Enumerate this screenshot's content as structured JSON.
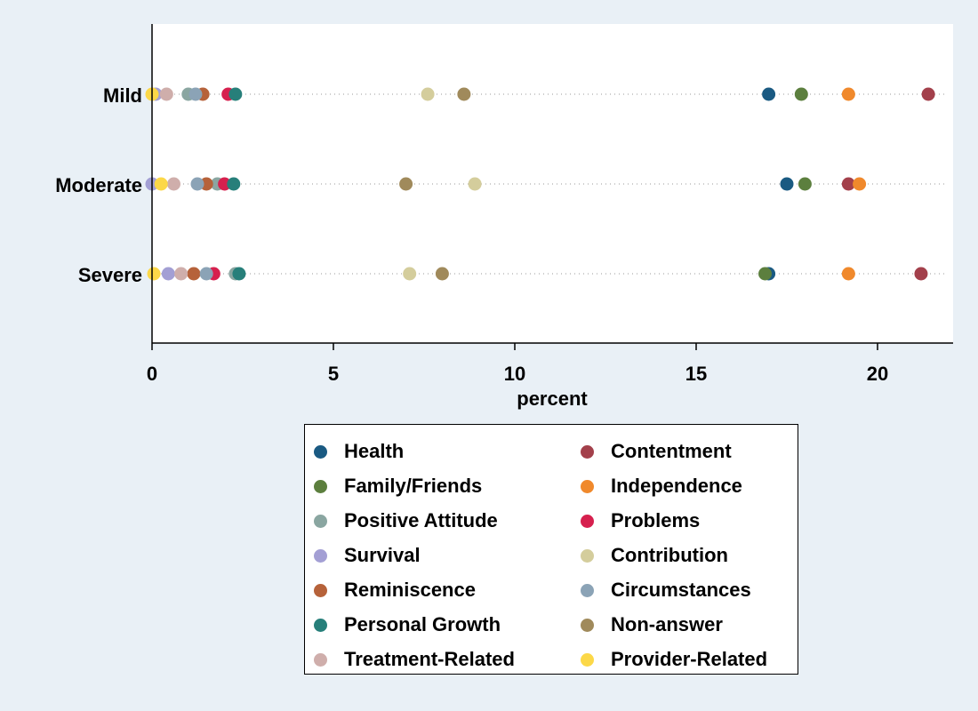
{
  "chart_data": {
    "type": "scatter",
    "title": "",
    "xlabel": "percent",
    "ylabel": "",
    "xlim": [
      0,
      22
    ],
    "xticks": [
      "0",
      "5",
      "10",
      "15",
      "20"
    ],
    "categories": [
      "Mild",
      "Moderate",
      "Severe"
    ],
    "grid": false,
    "legend_position": "bottom",
    "series": [
      {
        "name": "Health",
        "color": "#1a5a82",
        "values": [
          17.0,
          17.5,
          17.0
        ]
      },
      {
        "name": "Contentment",
        "color": "#a3404b",
        "values": [
          21.4,
          19.2,
          21.2
        ]
      },
      {
        "name": "Family/Friends",
        "color": "#5c7f3e",
        "values": [
          17.9,
          18.0,
          16.9
        ]
      },
      {
        "name": "Independence",
        "color": "#f0892c",
        "values": [
          19.2,
          19.5,
          19.2
        ]
      },
      {
        "name": "Positive Attitude",
        "color": "#8aa6a1",
        "values": [
          1.0,
          1.8,
          2.3
        ]
      },
      {
        "name": "Problems",
        "color": "#d6204e",
        "values": [
          2.1,
          2.0,
          1.7
        ]
      },
      {
        "name": "Survival",
        "color": "#a39fd4",
        "values": [
          0.1,
          0.0,
          0.45
        ]
      },
      {
        "name": "Contribution",
        "color": "#d4cd9c",
        "values": [
          7.6,
          8.9,
          7.1
        ]
      },
      {
        "name": "Reminiscence",
        "color": "#b6623a",
        "values": [
          1.4,
          1.5,
          1.15
        ]
      },
      {
        "name": "Circumstances",
        "color": "#8ba3b6",
        "values": [
          1.2,
          1.25,
          1.5
        ]
      },
      {
        "name": "Personal Growth",
        "color": "#277f7a",
        "values": [
          2.3,
          2.25,
          2.4
        ]
      },
      {
        "name": "Non-answer",
        "color": "#a08a5b",
        "values": [
          8.6,
          7.0,
          8.0
        ]
      },
      {
        "name": "Treatment-Related",
        "color": "#cfaeab",
        "values": [
          0.4,
          0.6,
          0.8
        ]
      },
      {
        "name": "Provider-Related",
        "color": "#fcd848",
        "values": [
          0.0,
          0.25,
          0.05
        ]
      }
    ]
  }
}
